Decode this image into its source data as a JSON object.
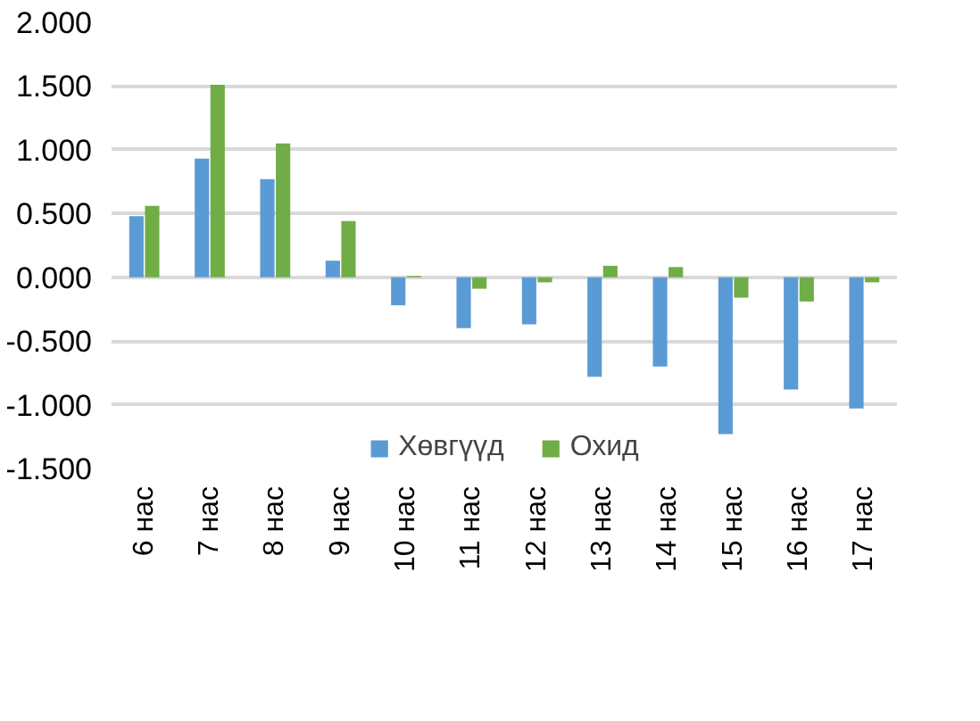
{
  "chart_data": {
    "type": "bar",
    "categories": [
      "6 нас",
      "7 нас",
      "8 нас",
      "9 нас",
      "10 нас",
      "11 нас",
      "12 нас",
      "13 нас",
      "14 нас",
      "15 нас",
      "16 нас",
      "17 нас"
    ],
    "series": [
      {
        "name": "Хөвгүүд",
        "color": "#5b9bd5",
        "values": [
          0.48,
          0.93,
          0.77,
          0.13,
          -0.22,
          -0.4,
          -0.37,
          -0.78,
          -0.7,
          -1.23,
          -0.88,
          -1.03
        ]
      },
      {
        "name": "Охид",
        "color": "#70ad47",
        "values": [
          0.56,
          1.51,
          1.05,
          0.44,
          0.01,
          -0.09,
          -0.04,
          0.09,
          0.08,
          -0.16,
          -0.19,
          -0.04
        ]
      }
    ],
    "ylim": [
      -1.5,
      2.0
    ],
    "yticks": [
      {
        "value": -1.5,
        "label": "-1.500"
      },
      {
        "value": -1.0,
        "label": "-1.000"
      },
      {
        "value": -0.5,
        "label": "-0.500"
      },
      {
        "value": 0,
        "label": "0.000"
      },
      {
        "value": 0.5,
        "label": "0.500"
      },
      {
        "value": 1.0,
        "label": "1.000"
      },
      {
        "value": 1.5,
        "label": "1.500"
      },
      {
        "value": 2.0,
        "label": "2.000"
      }
    ],
    "grid": "y",
    "legend": "bottom"
  }
}
